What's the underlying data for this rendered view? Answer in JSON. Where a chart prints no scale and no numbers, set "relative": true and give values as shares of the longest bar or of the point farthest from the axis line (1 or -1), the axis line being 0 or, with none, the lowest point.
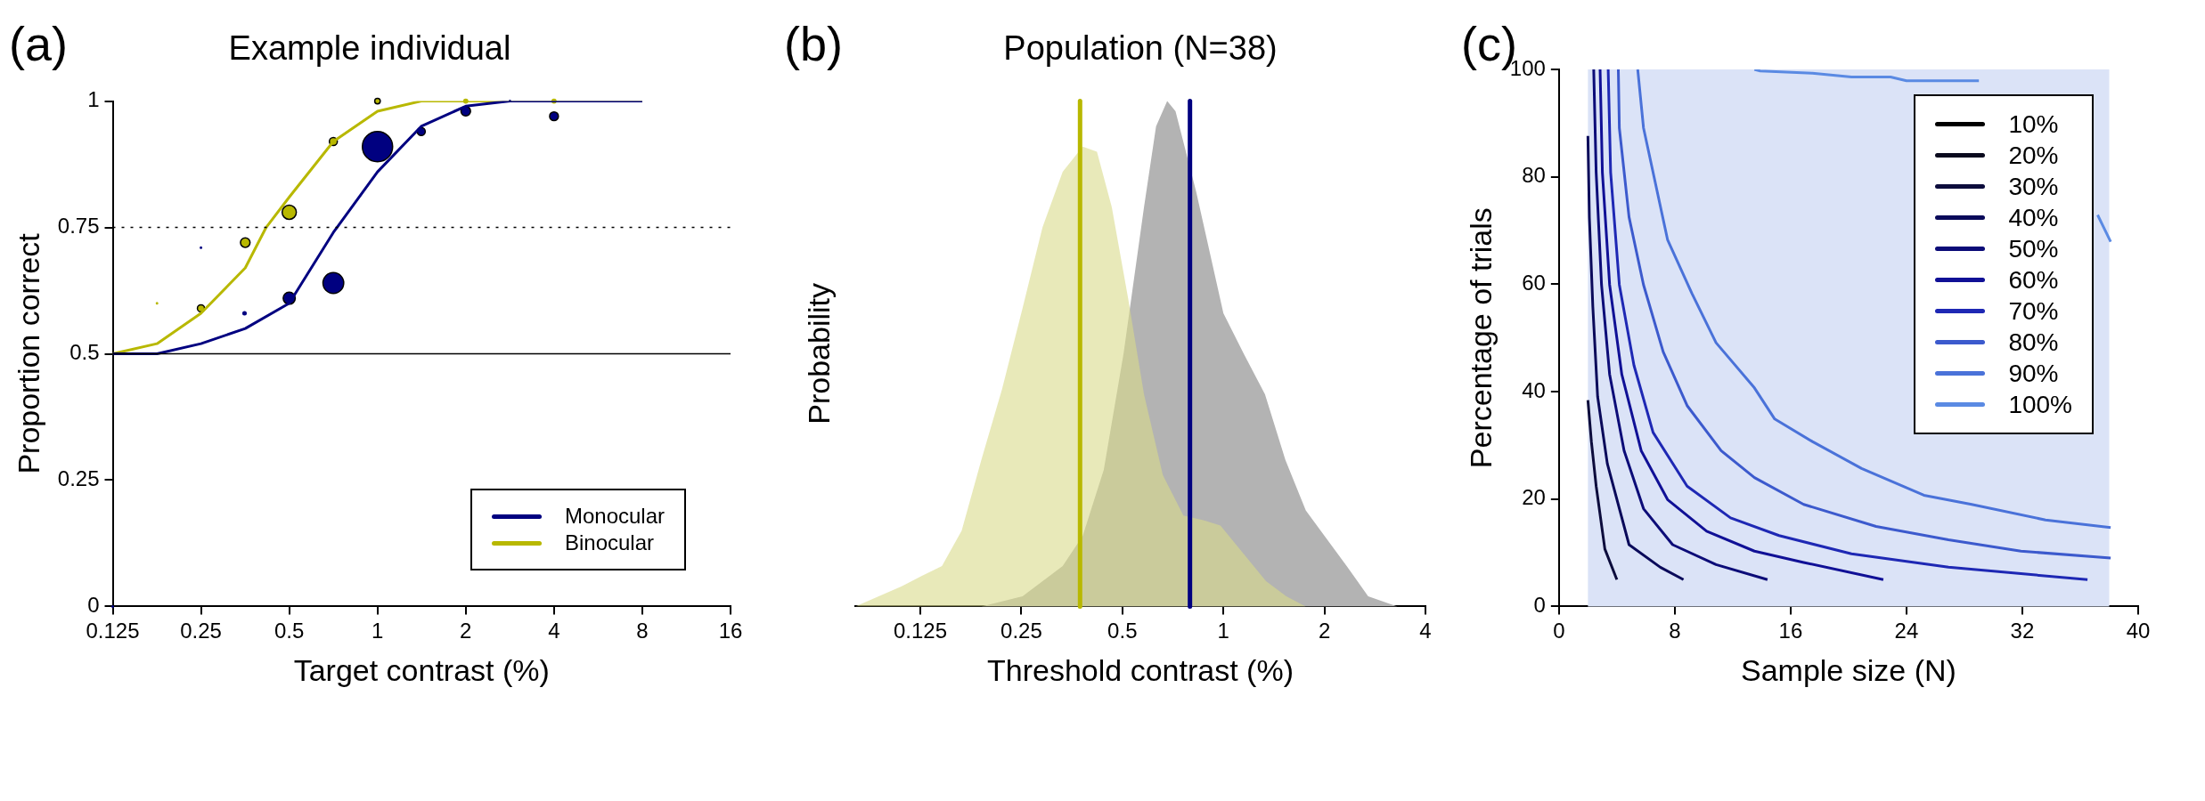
{
  "chart_data": [
    {
      "type": "line",
      "title": "Example individual",
      "xlabel": "Target contrast (%)",
      "ylabel": "Proportion correct",
      "annotations": [
        "(a)"
      ],
      "log": "x",
      "xlim": [
        0.125,
        16
      ],
      "xticks": [
        0.125,
        0.25,
        0.5,
        1,
        2,
        4,
        8,
        16
      ],
      "ylim": [
        0,
        1
      ],
      "yticks": [
        0,
        0.25,
        0.5,
        0.75,
        1
      ],
      "legend": "bottom right",
      "ref_lines": [
        {
          "axis": "y",
          "value": 0.75,
          "line_style": "dotted",
          "color": "#000000"
        },
        {
          "axis": "y",
          "value": 0.5,
          "color": "#000000"
        }
      ],
      "series": [
        {
          "name": "Monocular",
          "type": "line",
          "color": "#000080",
          "x": [
            0.125,
            0.177,
            0.25,
            0.354,
            0.5,
            0.707,
            1,
            1.41,
            2,
            2.83,
            4,
            8
          ],
          "values": [
            0.5,
            0.5,
            0.52,
            0.55,
            0.6,
            0.74,
            0.86,
            0.95,
            0.99,
            1,
            1,
            1
          ]
        },
        {
          "name": "Binocular",
          "type": "line",
          "color": "#b8b800",
          "x": [
            0.125,
            0.177,
            0.25,
            0.354,
            0.417,
            0.5,
            0.707,
            1,
            1.41,
            2,
            4,
            8
          ],
          "values": [
            0.5,
            0.52,
            0.58,
            0.67,
            0.75,
            0.81,
            0.92,
            0.98,
            1,
            1,
            1,
            1
          ]
        },
        {
          "type": "bubble",
          "color": "#000080",
          "x": [
            0.125,
            0.25,
            0.352,
            0.5,
            0.707,
            1,
            1.41,
            2,
            2.83,
            4
          ],
          "values": [
            0,
            0.71,
            0.58,
            0.61,
            0.64,
            0.91,
            0.94,
            0.98,
            1,
            0.97
          ],
          "sizes": [
            0.002,
            0.002,
            0.011,
            0.16,
            0.47,
            1,
            0.07,
            0.1,
            0.002,
            0.084
          ]
        },
        {
          "type": "bubble",
          "color": "#b8b800",
          "x": [
            0.177,
            0.25,
            0.354,
            0.5,
            0.707,
            1,
            2,
            4
          ],
          "values": [
            0.6,
            0.59,
            0.72,
            0.78,
            0.92,
            1,
            1,
            1
          ],
          "sizes": [
            0.002,
            0.056,
            0.1,
            0.22,
            0.07,
            0.034,
            0.017,
            0.017
          ]
        }
      ]
    },
    {
      "type": "area",
      "title": "Population (N=38)",
      "xlabel": "Threshold contrast (%)",
      "ylabel": "Probability",
      "annotations": [
        "(b)"
      ],
      "relative": true,
      "log": "x",
      "xlim": [
        0.08,
        4
      ],
      "xticks": [
        0.125,
        0.25,
        0.5,
        1,
        2,
        4
      ],
      "ref_lines": [
        {
          "axis": "x",
          "value": 0.374,
          "color": "#b8b800"
        },
        {
          "axis": "x",
          "value": 0.795,
          "color": "#000080"
        }
      ],
      "series": [
        {
          "color": "#b3b3b3",
          "x": [
            0.19,
            0.252,
            0.332,
            0.381,
            0.44,
            0.504,
            0.58,
            0.63,
            0.68,
            0.72,
            0.83,
            0.94,
            1.0,
            1.15,
            1.33,
            1.53,
            1.76,
            2.0,
            2.33,
            2.7,
            3.3
          ],
          "values": [
            0,
            0.02,
            0.08,
            0.14,
            0.27,
            0.5,
            0.79,
            0.95,
            1,
            0.98,
            0.82,
            0.66,
            0.58,
            0.5,
            0.42,
            0.29,
            0.19,
            0.14,
            0.08,
            0.02,
            0
          ]
        },
        {
          "color": "#d8db8a",
          "x": [
            0.08,
            0.11,
            0.126,
            0.145,
            0.166,
            0.19,
            0.219,
            0.252,
            0.289,
            0.332,
            0.381,
            0.42,
            0.465,
            0.52,
            0.58,
            0.66,
            0.76,
            0.877,
            0.98,
            1.13,
            1.34,
            1.54,
            1.76
          ],
          "values": [
            0,
            0.04,
            0.06,
            0.08,
            0.15,
            0.29,
            0.43,
            0.59,
            0.75,
            0.86,
            0.91,
            0.9,
            0.79,
            0.61,
            0.42,
            0.26,
            0.18,
            0.17,
            0.16,
            0.11,
            0.05,
            0.02,
            0
          ]
        }
      ]
    },
    {
      "type": "line",
      "xlabel": "Sample size (N)",
      "ylabel": "Percentage of trials",
      "annotations": [
        "(c)"
      ],
      "xlim": [
        0,
        40
      ],
      "xticks": [
        0,
        8,
        16,
        24,
        32,
        40
      ],
      "ylim": [
        0,
        100
      ],
      "yticks": [
        0,
        20,
        40,
        60,
        80,
        100
      ],
      "legend": "top right",
      "bands": [
        {
          "axis": "x",
          "from": 2,
          "to": 38,
          "color": "#dbe3f7"
        }
      ],
      "series": [
        {
          "name": "10%",
          "color": "#000000"
        },
        {
          "name": "20%",
          "color": "#0a0a1e"
        },
        {
          "name": "30%",
          "color": "#0c0c3c",
          "x": [
            2.0,
            2.24,
            2.57,
            3.17,
            4.0
          ],
          "values": [
            38.4,
            30.7,
            22.4,
            10.7,
            5.0
          ]
        },
        {
          "name": "40%",
          "color": "#0a0a5a",
          "x": [
            2.0,
            2.1,
            2.34,
            2.67,
            3.34,
            4.84,
            7.0,
            8.6
          ],
          "values": [
            87.6,
            72.5,
            55.8,
            39.1,
            26.6,
            11.5,
            7.3,
            5.0
          ]
        },
        {
          "name": "50%",
          "color": "#0c0c78",
          "x": [
            2.4,
            2.57,
            2.94,
            3.5,
            4.5,
            5.84,
            7.85,
            10.85,
            14.4
          ],
          "values": [
            100,
            80.8,
            59.9,
            43.2,
            29.0,
            18.2,
            11.5,
            7.8,
            5.0
          ]
        },
        {
          "name": "60%",
          "color": "#101096",
          "x": [
            2.84,
            3.0,
            3.5,
            4.34,
            5.68,
            7.5,
            10.2,
            13.5,
            16.9,
            22.4
          ],
          "values": [
            100,
            80.8,
            59.9,
            43.2,
            29.0,
            19.9,
            14.0,
            10.3,
            8.2,
            5.0
          ]
        },
        {
          "name": "70%",
          "color": "#1e28b4",
          "x": [
            3.4,
            3.57,
            4.17,
            5.18,
            6.5,
            8.85,
            11.85,
            15.2,
            20.2,
            26.9,
            31.9,
            36.5
          ],
          "values": [
            100,
            80.8,
            59.9,
            44.9,
            32.4,
            22.4,
            16.5,
            13.2,
            9.8,
            7.3,
            6.1,
            5.0
          ]
        },
        {
          "name": "80%",
          "color": "#3c5acd",
          "x": [
            4.1,
            4.17,
            4.84,
            5.84,
            7.2,
            8.85,
            11.2,
            13.5,
            16.9,
            21.9,
            26.9,
            31.9,
            38.1
          ],
          "values": [
            100,
            89.1,
            72.5,
            59.9,
            47.4,
            37.4,
            29.0,
            24.0,
            19.0,
            14.9,
            12.4,
            10.3,
            9.0
          ]
        },
        {
          "name": "90%",
          "color": "#4a72d9",
          "x": [
            5.44,
            5.84,
            7.5,
            9.18,
            10.85,
            13.5,
            14.9,
            17.5,
            20.9,
            25.2,
            28.5,
            33.6,
            38.1
          ],
          "values": [
            100,
            89.1,
            68.3,
            58.3,
            49.1,
            40.7,
            34.9,
            30.7,
            25.7,
            20.7,
            19.0,
            16.1,
            14.7
          ]
        },
        {
          "name": "100%",
          "color": "#5a8ae3",
          "x": [
            13.5,
            13.9,
            17.5,
            20.2,
            22.9,
            24.0,
            29.0,
            29.7,
            33,
            37.2,
            38.1
          ],
          "values": [
            100,
            99.7,
            99.3,
            98.6,
            98.6,
            97.9,
            97.9,
            null,
            null,
            72.9,
            67.9
          ]
        }
      ]
    }
  ]
}
